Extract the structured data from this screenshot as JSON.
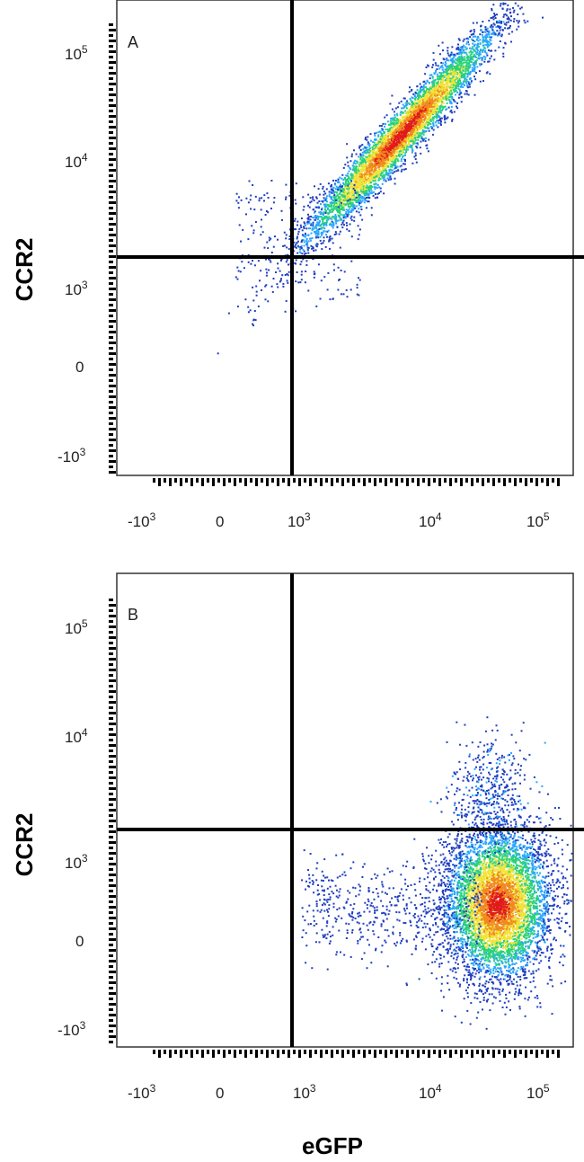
{
  "chart_data": [
    {
      "type": "scatter",
      "panel_label": "A",
      "ylabel": "CCR2",
      "xlabel": "",
      "x_tick_labels": [
        "-10^3",
        "0",
        "10^3",
        "10^4",
        "10^5"
      ],
      "y_tick_labels": [
        "10^5",
        "10^4",
        "10^3",
        "0",
        "-10^3"
      ],
      "gate": {
        "x": 800,
        "y": 1800
      },
      "population": {
        "center_x": 7000,
        "center_y": 12000,
        "description": "single population along diagonal, eGFP+ CCR2+"
      },
      "colors": [
        "#1f3fbf",
        "#2aa6ff",
        "#29d27a",
        "#f0e43a",
        "#f08a1e",
        "#e01a1a"
      ]
    },
    {
      "type": "scatter",
      "panel_label": "B",
      "ylabel": "CCR2",
      "xlabel": "eGFP",
      "x_tick_labels": [
        "-10^3",
        "0",
        "10^3",
        "10^4",
        "10^5"
      ],
      "y_tick_labels": [
        "10^5",
        "10^4",
        "10^3",
        "0",
        "-10^3"
      ],
      "gate": {
        "x": 800,
        "y": 1800
      },
      "population": {
        "center_x": 40000,
        "center_y": 500,
        "description": "population eGFP+ CCR2-"
      },
      "colors": [
        "#1f3fbf",
        "#2aa6ff",
        "#29d27a",
        "#f0e43a",
        "#f08a1e",
        "#e01a1a"
      ]
    }
  ]
}
